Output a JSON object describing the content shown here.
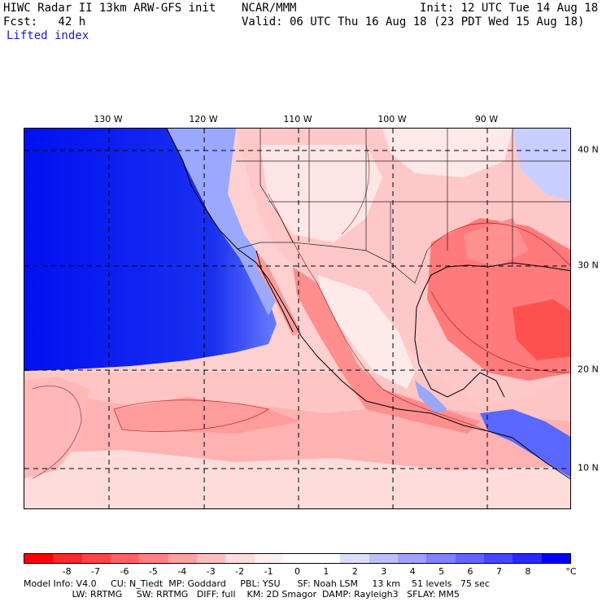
{
  "header": {
    "title": "HIWC Radar II 13km ARW-GFS init",
    "org": "NCAR/MMM",
    "init": "Init: 12 UTC Tue 14 Aug 18",
    "fcst": "Fcst:   42 h",
    "valid": "Valid: 06 UTC Thu 16 Aug 18 (23 PDT Wed 15 Aug 18)",
    "field": "Lifted index"
  },
  "map": {
    "lon_labels": [
      "130 W",
      "120 W",
      "110 W",
      "100 W",
      "90 W"
    ],
    "lat_labels": [
      "40 N",
      "30 N",
      "20 N",
      "10 N"
    ]
  },
  "colorbar": {
    "colors": [
      "#ff0000",
      "#ff2828",
      "#ff4646",
      "#ff6464",
      "#ff8282",
      "#ffa0a0",
      "#ffbebe",
      "#ffdcdc",
      "#fff0f0",
      "#ffffff",
      "#ffffff",
      "#dcdcff",
      "#bebeff",
      "#a0a0ff",
      "#8282ff",
      "#6464ff",
      "#4646ff",
      "#2828ff",
      "#0000ff"
    ],
    "labels": [
      "-8",
      "-7",
      "-6",
      "-5",
      "-4",
      "-3",
      "-2",
      "-1",
      "0",
      "1",
      "2",
      "3",
      "4",
      "5",
      "6",
      "7",
      "8"
    ],
    "unit": "°C"
  },
  "footer": {
    "line1": "Model Info: V4.0     CU: N_Tiedt  MP: Goddard     PBL: YSU      SF: Noah LSM     13 km    51 levels   75 sec",
    "line2": "                 LW: RRTMG     SW: RRTMG   DIFF: full    KM: 2D Smagor  DAMP: Rayleigh3   SFLAY: MM5"
  }
}
